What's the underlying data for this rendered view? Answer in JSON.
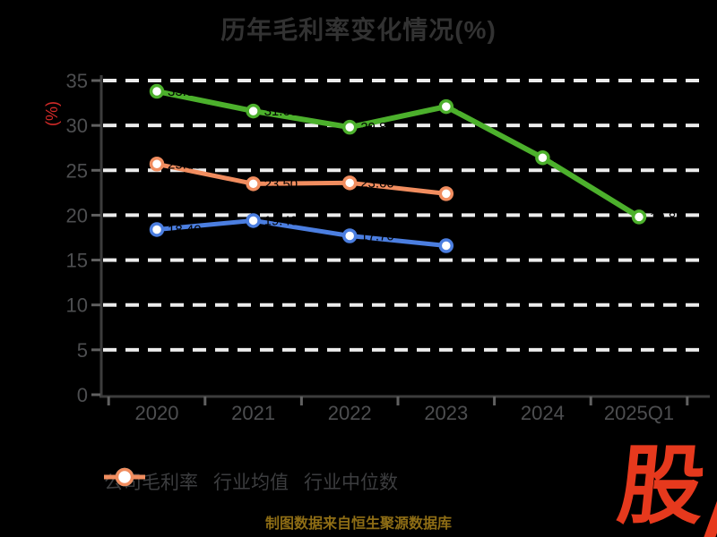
{
  "title": "历年毛利率变化情况(%)",
  "footer": {
    "source_note": "制图数据来自恒生聚源数据库"
  },
  "logo": {
    "text": "股"
  },
  "colors": {
    "background": "#000000",
    "title_text": "#323232",
    "axis_line": "#3c3c3c",
    "tick": "#606060",
    "axis_label_text": "#4d4e50",
    "gridline": "#ececec",
    "legend_text": "#3c3d3f",
    "ylabel_red": "#d22a28",
    "footer_gold": "#8e6d15",
    "logo_red": "#e6391d",
    "marker_fill": "#ffffff",
    "value_label": "#000000"
  },
  "chart_data": {
    "type": "line",
    "title": "历年毛利率变化情况(%)",
    "categories": [
      "2020",
      "2021",
      "2022",
      "2023",
      "2024",
      "2025Q1"
    ],
    "series": [
      {
        "name": "公司毛利率",
        "key": "company-gross-margin",
        "color": "#4cb02c",
        "values": [
          33.8,
          31.6,
          29.8,
          32.1,
          26.4,
          19.8
        ]
      },
      {
        "name": "行业均值",
        "key": "industry-average",
        "color": "#4b7ee0",
        "values": [
          18.4,
          19.4,
          17.7,
          16.6,
          null,
          null
        ]
      },
      {
        "name": "行业中位数",
        "key": "industry-median",
        "color": "#f18d5f",
        "values": [
          25.7,
          23.5,
          23.6,
          22.4,
          null,
          null
        ]
      }
    ],
    "xlabel": "",
    "ylabel": "(%)",
    "ylim": [
      0,
      35
    ],
    "ytick_interval": 5,
    "ytick_labels": [
      "0",
      "5",
      "10",
      "15",
      "20",
      "25",
      "30",
      "35"
    ],
    "grid": true,
    "grid_style": "dashed-white",
    "legend_position": "bottom"
  }
}
